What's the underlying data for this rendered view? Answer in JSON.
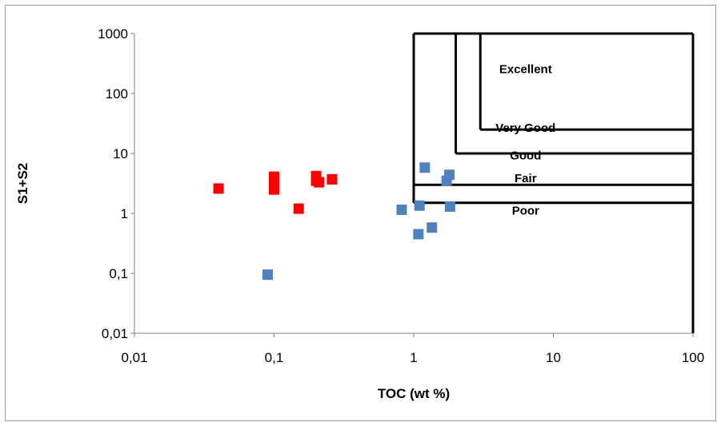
{
  "chart_data": {
    "type": "scatter",
    "xlabel": "TOC (wt %)",
    "ylabel": "S1+S2",
    "xscale": "log",
    "yscale": "log",
    "xlim": [
      0.01,
      100
    ],
    "ylim": [
      0.01,
      1000
    ],
    "x_ticks": [
      {
        "value": 0.01,
        "label": "0,01"
      },
      {
        "value": 0.1,
        "label": "0,1"
      },
      {
        "value": 1,
        "label": "1"
      },
      {
        "value": 10,
        "label": "10"
      },
      {
        "value": 100,
        "label": "100"
      }
    ],
    "y_ticks": [
      {
        "value": 0.01,
        "label": "0,01"
      },
      {
        "value": 0.1,
        "label": "0,1"
      },
      {
        "value": 1,
        "label": "1"
      },
      {
        "value": 10,
        "label": "10"
      },
      {
        "value": 100,
        "label": "100"
      },
      {
        "value": 1000,
        "label": "1000"
      }
    ],
    "grid": false,
    "legend": "none",
    "zones": [
      {
        "label": "Excellent",
        "toc_min": 3,
        "s_min": 25,
        "label_x": 6,
        "label_y": 220
      },
      {
        "label": "Very Good",
        "toc_min": 2,
        "s_min": 10,
        "label_x": 6,
        "label_y": 23
      },
      {
        "label": "Good",
        "toc_min": 1,
        "s_min": 3,
        "label_x": 6,
        "label_y": 8
      },
      {
        "label": "Fair",
        "toc_min": 1,
        "s_min": 1.5,
        "label_x": 6,
        "label_y": 3.3
      },
      {
        "label": "Poor",
        "toc_min": 0.01,
        "s_min": 0.01,
        "label_x": 6,
        "label_y": 0.95
      }
    ],
    "series": [
      {
        "color": "#ff0000",
        "points": [
          {
            "x": 0.04,
            "y": 2.6
          },
          {
            "x": 0.1,
            "y": 4.1
          },
          {
            "x": 0.1,
            "y": 3.4
          },
          {
            "x": 0.1,
            "y": 2.5
          },
          {
            "x": 0.15,
            "y": 1.2
          },
          {
            "x": 0.2,
            "y": 4.2
          },
          {
            "x": 0.2,
            "y": 3.5
          },
          {
            "x": 0.21,
            "y": 3.3
          },
          {
            "x": 0.26,
            "y": 3.7
          }
        ]
      },
      {
        "color": "#4f81bd",
        "points": [
          {
            "x": 0.09,
            "y": 0.095
          },
          {
            "x": 0.82,
            "y": 1.15
          },
          {
            "x": 1.08,
            "y": 0.45
          },
          {
            "x": 1.1,
            "y": 1.35
          },
          {
            "x": 1.2,
            "y": 5.8
          },
          {
            "x": 1.35,
            "y": 0.58
          },
          {
            "x": 1.72,
            "y": 3.5
          },
          {
            "x": 1.8,
            "y": 4.4
          },
          {
            "x": 1.82,
            "y": 1.3
          }
        ]
      }
    ]
  }
}
